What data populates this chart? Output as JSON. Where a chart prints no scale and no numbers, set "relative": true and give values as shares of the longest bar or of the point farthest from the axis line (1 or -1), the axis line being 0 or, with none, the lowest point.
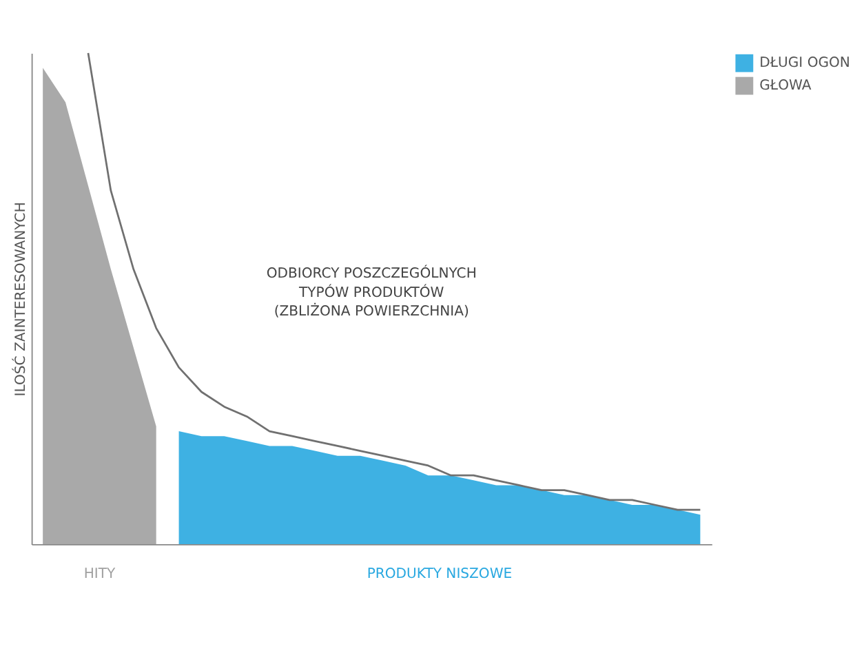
{
  "chart_data": {
    "type": "area",
    "relative": true,
    "ylabel": "ILOŚĆ ZAINTERESOWANYCH",
    "legend": "right",
    "grid": false,
    "tick_labels": false,
    "categories": [
      null,
      null,
      null,
      null,
      null,
      null,
      null,
      null,
      null,
      null,
      null,
      null,
      null,
      null,
      null,
      null,
      null,
      null,
      null,
      null,
      null,
      null,
      null,
      null,
      null,
      null,
      null,
      null,
      null,
      null
    ],
    "series": [
      {
        "name": "DŁUGI OGON",
        "color": "#29a8e0",
        "values": [
          null,
          null,
          null,
          null,
          null,
          null,
          0.23,
          0.22,
          0.22,
          0.21,
          0.2,
          0.2,
          0.19,
          0.18,
          0.18,
          0.17,
          0.16,
          0.14,
          0.14,
          0.13,
          0.12,
          0.12,
          0.11,
          0.1,
          0.1,
          0.09,
          0.08,
          0.08,
          0.07,
          0.06
        ]
      },
      {
        "name": "GŁOWA",
        "color": "#a0a0a0",
        "values": [
          0.97,
          0.9,
          0.73,
          0.56,
          0.4,
          0.24,
          null,
          null,
          null,
          null,
          null,
          null,
          null,
          null,
          null,
          null,
          null,
          null,
          null,
          null,
          null,
          null,
          null,
          null,
          null,
          null,
          null,
          null,
          null,
          null
        ]
      },
      {
        "type": "line",
        "color": "#707070",
        "values": [
          null,
          null,
          1,
          0.72,
          0.56,
          0.44,
          0.36,
          0.31,
          0.28,
          0.26,
          0.23,
          0.22,
          0.21,
          0.2,
          0.19,
          0.18,
          0.17,
          0.16,
          0.14,
          0.14,
          0.13,
          0.12,
          0.11,
          0.11,
          0.1,
          0.09,
          0.09,
          0.08,
          0.07,
          0.07
        ]
      }
    ],
    "annotations": [
      "ODBIORCY POSZCZEGÓLNYCH\nTYPÓW PRODUKTÓW\n(ZBLIŻONA POWIERZCHNIA)",
      "HITY",
      "PRODUKTY NISZOWE"
    ]
  }
}
